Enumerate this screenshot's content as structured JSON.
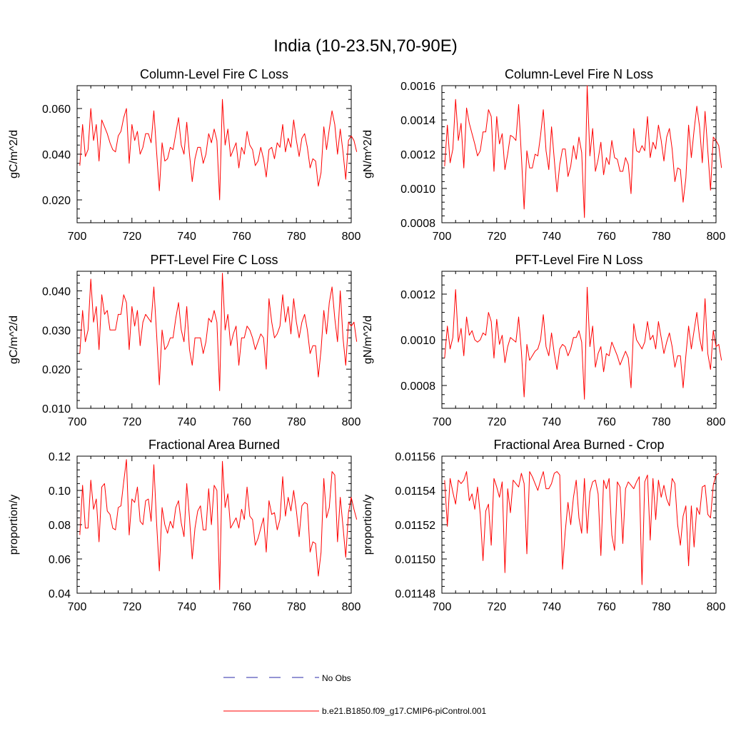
{
  "figure": {
    "title": "India (10-23.5N,70-90E)"
  },
  "legend": {
    "entries": [
      {
        "label": "No Obs",
        "color": "#2a2aa8",
        "style": "dashed"
      },
      {
        "label": "b.e21.B1850.f09_g17.CMIP6-piControl.001",
        "color": "#ff0000",
        "style": "solid"
      }
    ]
  },
  "chart_data": [
    {
      "type": "line",
      "title": "Column-Level Fire C Loss",
      "ylabel": "gC/m^2/d",
      "xlim": [
        700,
        800
      ],
      "ylim": [
        0.01,
        0.07
      ],
      "xticks": [
        "700",
        "720",
        "740",
        "760",
        "780",
        "800"
      ],
      "yticks": [
        {
          "v": 0.02,
          "label": "0.020"
        },
        {
          "v": 0.04,
          "label": "0.040"
        },
        {
          "v": 0.06,
          "label": "0.060"
        }
      ],
      "series": [
        {
          "color": "#ff0000",
          "x_start": 701,
          "x_step": 1,
          "values": [
            0.035,
            0.053,
            0.039,
            0.042,
            0.06,
            0.046,
            0.053,
            0.037,
            0.055,
            0.052,
            0.049,
            0.045,
            0.042,
            0.041,
            0.048,
            0.05,
            0.056,
            0.06,
            0.036,
            0.053,
            0.046,
            0.05,
            0.04,
            0.043,
            0.049,
            0.049,
            0.045,
            0.059,
            0.041,
            0.024,
            0.045,
            0.037,
            0.038,
            0.043,
            0.042,
            0.049,
            0.056,
            0.044,
            0.04,
            0.054,
            0.04,
            0.028,
            0.038,
            0.043,
            0.043,
            0.036,
            0.04,
            0.049,
            0.045,
            0.051,
            0.046,
            0.02,
            0.064,
            0.044,
            0.051,
            0.039,
            0.042,
            0.045,
            0.034,
            0.043,
            0.04,
            0.05,
            0.044,
            0.042,
            0.035,
            0.037,
            0.043,
            0.038,
            0.03,
            0.042,
            0.043,
            0.038,
            0.045,
            0.043,
            0.053,
            0.041,
            0.047,
            0.043,
            0.055,
            0.046,
            0.039,
            0.047,
            0.049,
            0.043,
            0.034,
            0.038,
            0.037,
            0.026,
            0.032,
            0.052,
            0.042,
            0.051,
            0.059,
            0.053,
            0.04,
            0.051,
            0.041,
            0.029,
            0.046,
            0.048,
            0.046,
            0.041
          ]
        }
      ]
    },
    {
      "type": "line",
      "title": "Column-Level Fire N Loss",
      "ylabel": "gN/m^2/d",
      "xlim": [
        700,
        800
      ],
      "ylim": [
        0.0008,
        0.0016
      ],
      "xticks": [
        "700",
        "720",
        "740",
        "760",
        "780",
        "800"
      ],
      "yticks": [
        {
          "v": 0.0008,
          "label": "0.0008"
        },
        {
          "v": 0.001,
          "label": "0.0010"
        },
        {
          "v": 0.0012,
          "label": "0.0012"
        },
        {
          "v": 0.0014,
          "label": "0.0014"
        },
        {
          "v": 0.0016,
          "label": "0.0016"
        }
      ],
      "series": [
        {
          "color": "#ff0000",
          "x_start": 701,
          "x_step": 1,
          "values": [
            0.00113,
            0.00137,
            0.00115,
            0.00123,
            0.00152,
            0.00128,
            0.00138,
            0.00112,
            0.00147,
            0.00138,
            0.00132,
            0.00126,
            0.00119,
            0.00122,
            0.00133,
            0.00133,
            0.00146,
            0.00142,
            0.0011,
            0.00142,
            0.00126,
            0.00132,
            0.00111,
            0.0012,
            0.00131,
            0.0013,
            0.00128,
            0.00149,
            0.00119,
            0.00088,
            0.00122,
            0.00112,
            0.00112,
            0.0012,
            0.00119,
            0.00131,
            0.00146,
            0.00122,
            0.00111,
            0.00136,
            0.00117,
            0.00098,
            0.00114,
            0.00123,
            0.00123,
            0.00107,
            0.00113,
            0.00125,
            0.00117,
            0.0013,
            0.00121,
            0.00083,
            0.0016,
            0.00119,
            0.00135,
            0.0011,
            0.00117,
            0.00127,
            0.00108,
            0.00118,
            0.00114,
            0.00128,
            0.00118,
            0.00117,
            0.0011,
            0.0011,
            0.00118,
            0.00114,
            0.00097,
            0.00135,
            0.00122,
            0.00121,
            0.00125,
            0.00122,
            0.00142,
            0.00118,
            0.00127,
            0.00123,
            0.00137,
            0.00128,
            0.00116,
            0.0013,
            0.00135,
            0.00123,
            0.00104,
            0.00112,
            0.00111,
            0.00092,
            0.00106,
            0.00137,
            0.00118,
            0.00134,
            0.00148,
            0.00136,
            0.00115,
            0.00145,
            0.00122,
            0.00099,
            0.0013,
            0.00128,
            0.00125,
            0.00112
          ]
        }
      ]
    },
    {
      "type": "line",
      "title": "PFT-Level Fire C Loss",
      "ylabel": "gC/m^2/d",
      "xlim": [
        700,
        800
      ],
      "ylim": [
        0.01,
        0.045
      ],
      "xticks": [
        "700",
        "720",
        "740",
        "760",
        "780",
        "800"
      ],
      "yticks": [
        {
          "v": 0.01,
          "label": "0.010"
        },
        {
          "v": 0.02,
          "label": "0.020"
        },
        {
          "v": 0.03,
          "label": "0.030"
        },
        {
          "v": 0.04,
          "label": "0.040"
        }
      ],
      "series": [
        {
          "color": "#ff0000",
          "x_start": 701,
          "x_step": 1,
          "values": [
            0.024,
            0.035,
            0.027,
            0.03,
            0.043,
            0.032,
            0.036,
            0.025,
            0.039,
            0.034,
            0.035,
            0.03,
            0.03,
            0.03,
            0.034,
            0.034,
            0.039,
            0.037,
            0.025,
            0.036,
            0.031,
            0.035,
            0.026,
            0.032,
            0.034,
            0.033,
            0.032,
            0.041,
            0.029,
            0.016,
            0.03,
            0.025,
            0.026,
            0.028,
            0.028,
            0.033,
            0.037,
            0.03,
            0.027,
            0.036,
            0.025,
            0.021,
            0.028,
            0.028,
            0.028,
            0.024,
            0.027,
            0.033,
            0.032,
            0.035,
            0.032,
            0.0145,
            0.0445,
            0.03,
            0.034,
            0.026,
            0.029,
            0.031,
            0.021,
            0.028,
            0.028,
            0.031,
            0.03,
            0.028,
            0.025,
            0.027,
            0.029,
            0.028,
            0.02,
            0.038,
            0.032,
            0.028,
            0.029,
            0.031,
            0.039,
            0.032,
            0.036,
            0.029,
            0.038,
            0.032,
            0.028,
            0.032,
            0.034,
            0.03,
            0.024,
            0.026,
            0.026,
            0.018,
            0.025,
            0.035,
            0.029,
            0.037,
            0.041,
            0.033,
            0.027,
            0.04,
            0.028,
            0.021,
            0.032,
            0.031,
            0.032,
            0.027
          ]
        }
      ]
    },
    {
      "type": "line",
      "title": "PFT-Level Fire N Loss",
      "ylabel": "gN/m^2/d",
      "xlim": [
        700,
        800
      ],
      "ylim": [
        0.0007,
        0.0013
      ],
      "xticks": [
        "700",
        "720",
        "740",
        "760",
        "780",
        "800"
      ],
      "yticks": [
        {
          "v": 0.0008,
          "label": "0.0008"
        },
        {
          "v": 0.001,
          "label": "0.0010"
        },
        {
          "v": 0.0012,
          "label": "0.0012"
        }
      ],
      "series": [
        {
          "color": "#ff0000",
          "x_start": 701,
          "x_step": 1,
          "values": [
            0.00092,
            0.00106,
            0.00096,
            0.00101,
            0.00122,
            0.00099,
            0.00105,
            0.00093,
            0.0011,
            0.00102,
            0.00104,
            0.001,
            0.00099,
            0.001,
            0.00103,
            0.00102,
            0.00112,
            0.00108,
            0.00092,
            0.00109,
            0.00098,
            0.00102,
            0.0009,
            0.00097,
            0.00101,
            0.001,
            0.00099,
            0.0011,
            0.00095,
            0.00075,
            0.00098,
            0.00091,
            0.00093,
            0.00095,
            0.00096,
            0.001,
            0.00111,
            0.00097,
            0.00093,
            0.00103,
            0.00094,
            0.00087,
            0.00096,
            0.00098,
            0.00097,
            0.00093,
            0.00096,
            0.00101,
            0.00101,
            0.00104,
            0.00099,
            0.00074,
            0.00123,
            0.00097,
            0.00106,
            0.00088,
            0.00094,
            0.00097,
            0.00086,
            0.00094,
            0.00093,
            0.00099,
            0.00096,
            0.00093,
            0.00089,
            0.00092,
            0.00095,
            0.00092,
            0.00079,
            0.00107,
            0.001,
            0.00098,
            0.00096,
            0.00099,
            0.00108,
            0.001,
            0.00102,
            0.00096,
            0.00108,
            0.00101,
            0.00094,
            0.00099,
            0.00103,
            0.00097,
            0.00088,
            0.00093,
            0.00093,
            0.00079,
            0.00093,
            0.00106,
            0.00096,
            0.00104,
            0.00112,
            0.00101,
            0.00095,
            0.00118,
            0.00094,
            0.00087,
            0.00104,
            0.00097,
            0.00098,
            0.00091
          ]
        }
      ]
    },
    {
      "type": "line",
      "title": "Fractional Area Burned",
      "ylabel": "proportion/y",
      "xlim": [
        700,
        800
      ],
      "ylim": [
        0.04,
        0.12
      ],
      "xticks": [
        "700",
        "720",
        "740",
        "760",
        "780",
        "800"
      ],
      "yticks": [
        {
          "v": 0.04,
          "label": "0.04"
        },
        {
          "v": 0.06,
          "label": "0.06"
        },
        {
          "v": 0.08,
          "label": "0.08"
        },
        {
          "v": 0.1,
          "label": "0.10"
        },
        {
          "v": 0.12,
          "label": "0.12"
        }
      ],
      "series": [
        {
          "color": "#ff0000",
          "x_start": 701,
          "x_step": 1,
          "values": [
            0.074,
            0.103,
            0.078,
            0.078,
            0.106,
            0.089,
            0.095,
            0.07,
            0.102,
            0.104,
            0.088,
            0.086,
            0.078,
            0.077,
            0.09,
            0.091,
            0.105,
            0.118,
            0.074,
            0.095,
            0.093,
            0.102,
            0.082,
            0.08,
            0.094,
            0.095,
            0.082,
            0.115,
            0.081,
            0.053,
            0.09,
            0.08,
            0.075,
            0.082,
            0.078,
            0.09,
            0.094,
            0.081,
            0.073,
            0.104,
            0.084,
            0.06,
            0.078,
            0.088,
            0.091,
            0.077,
            0.077,
            0.101,
            0.08,
            0.103,
            0.1,
            0.042,
            0.117,
            0.09,
            0.098,
            0.078,
            0.081,
            0.084,
            0.078,
            0.089,
            0.083,
            0.102,
            0.085,
            0.083,
            0.068,
            0.072,
            0.078,
            0.084,
            0.064,
            0.094,
            0.086,
            0.087,
            0.077,
            0.083,
            0.108,
            0.085,
            0.096,
            0.088,
            0.1,
            0.088,
            0.073,
            0.091,
            0.093,
            0.092,
            0.064,
            0.07,
            0.069,
            0.05,
            0.064,
            0.107,
            0.084,
            0.09,
            0.111,
            0.109,
            0.07,
            0.096,
            0.079,
            0.061,
            0.087,
            0.096,
            0.089,
            0.083
          ]
        }
      ]
    },
    {
      "type": "line",
      "title": "Fractional Area Burned - Crop",
      "ylabel": "proportion/y",
      "xlim": [
        700,
        800
      ],
      "ylim": [
        0.01148,
        0.01156
      ],
      "xticks": [
        "700",
        "720",
        "740",
        "760",
        "780",
        "800"
      ],
      "yticks": [
        {
          "v": 0.01148,
          "label": "0.01148"
        },
        {
          "v": 0.0115,
          "label": "0.01150"
        },
        {
          "v": 0.01152,
          "label": "0.01152"
        },
        {
          "v": 0.01154,
          "label": "0.01154"
        },
        {
          "v": 0.01156,
          "label": "0.01156"
        }
      ],
      "series": [
        {
          "color": "#ff0000",
          "x_start": 701,
          "x_step": 1,
          "values": [
            0.011546,
            0.011519,
            0.011547,
            0.011539,
            0.011532,
            0.011546,
            0.011544,
            0.011546,
            0.011551,
            0.011534,
            0.011538,
            0.011529,
            0.011542,
            0.011526,
            0.011499,
            0.011528,
            0.011532,
            0.011508,
            0.011547,
            0.011542,
            0.011536,
            0.011545,
            0.011492,
            0.011541,
            0.011527,
            0.011546,
            0.011544,
            0.011542,
            0.01155,
            0.011544,
            0.011503,
            0.011551,
            0.011548,
            0.011544,
            0.01154,
            0.011546,
            0.011551,
            0.011541,
            0.011541,
            0.011544,
            0.01155,
            0.011551,
            0.011549,
            0.011494,
            0.011516,
            0.011533,
            0.01152,
            0.011536,
            0.011546,
            0.011524,
            0.011515,
            0.011547,
            0.011515,
            0.011539,
            0.011545,
            0.011546,
            0.011538,
            0.011502,
            0.011546,
            0.011541,
            0.011547,
            0.011514,
            0.011505,
            0.011545,
            0.011542,
            0.011509,
            0.011541,
            0.011545,
            0.011543,
            0.011541,
            0.011545,
            0.011548,
            0.011485,
            0.011545,
            0.011549,
            0.011511,
            0.011547,
            0.011523,
            0.011546,
            0.011536,
            0.011543,
            0.011535,
            0.011531,
            0.011547,
            0.011544,
            0.01152,
            0.011508,
            0.011525,
            0.011531,
            0.011496,
            0.011531,
            0.011507,
            0.01153,
            0.011526,
            0.011542,
            0.011543,
            0.011526,
            0.011524,
            0.011543,
            0.011549,
            0.01155
          ]
        }
      ]
    }
  ]
}
